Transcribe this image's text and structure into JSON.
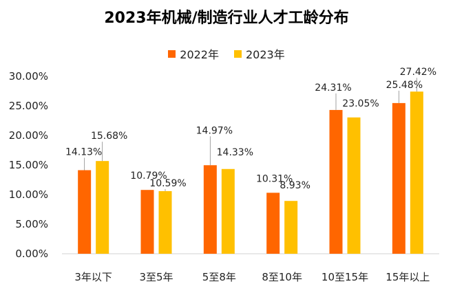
{
  "chart_data": {
    "type": "bar",
    "title": "2023年机械/制造行业人才工龄分布",
    "categories": [
      "3年以下",
      "3至5年",
      "5至8年",
      "8至10年",
      "10至15年",
      "15年以上"
    ],
    "series": [
      {
        "name": "2022年",
        "color": "#FF6600",
        "values": [
          14.13,
          10.79,
          14.97,
          10.31,
          24.31,
          25.48
        ],
        "labels": [
          "14.13%",
          "10.79%",
          "14.97%",
          "10.31%",
          "24.31%",
          "25.48%"
        ]
      },
      {
        "name": "2023年",
        "color": "#FFC000",
        "values": [
          15.68,
          10.59,
          14.33,
          8.93,
          23.05,
          27.42
        ],
        "labels": [
          "15.68%",
          "10.59%",
          "14.33%",
          "8.93%",
          "23.05%",
          "27.42%"
        ]
      }
    ],
    "y_ticks": [
      "0.00%",
      "5.00%",
      "10.00%",
      "15.00%",
      "20.00%",
      "25.00%",
      "30.00%"
    ],
    "ylim": [
      0,
      30
    ],
    "legend_position": "top",
    "grid": false
  }
}
